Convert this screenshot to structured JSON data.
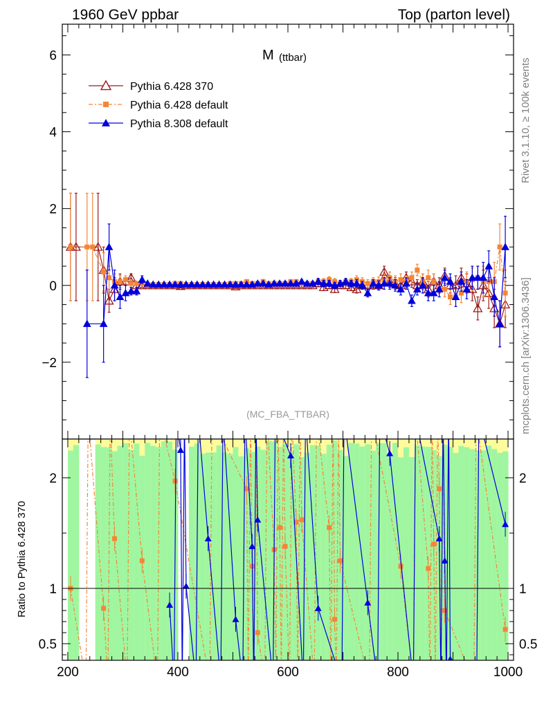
{
  "header": {
    "left": "1960 GeV ppbar",
    "right": "Top (parton level)"
  },
  "side_labels": {
    "rivet": "Rivet 3.1.10, ≥ 100k events",
    "mcplots": "mcplots.cern.ch [arXiv:1306.3436]"
  },
  "colors": {
    "p6_370": "#9b1b1b",
    "p6_default": "#f58536",
    "p8_default": "#0000dd",
    "band_green": "#a0f6a0",
    "band_yellow": "#fcfc9c"
  },
  "chart_data": [
    {
      "type": "line",
      "title": "M",
      "title_sub": "(ttbar)",
      "watermark": "(MC_FBA_TTBAR)",
      "ylim": [
        -4,
        6.8
      ],
      "xlim": [
        190,
        1010
      ],
      "yticks": [
        -2,
        0,
        2,
        4,
        6
      ],
      "ytick_labels": [
        "−2",
        "0",
        "2",
        "4",
        "6"
      ],
      "legend": [
        {
          "name": "Pythia 6.428 370",
          "marker": "open-triangle",
          "color": "#9b1b1b"
        },
        {
          "name": "Pythia 6.428 default",
          "marker": "square",
          "color": "#f58536"
        },
        {
          "name": "Pythia 8.308 default",
          "marker": "filled-triangle",
          "color": "#0000dd"
        }
      ],
      "legend_position": "top-left",
      "series": [
        {
          "name": "Pythia 6.428 370",
          "x": [
            205,
            215,
            255,
            265,
            275,
            285,
            295,
            305,
            315,
            325,
            335,
            345,
            355,
            365,
            375,
            385,
            395,
            405,
            415,
            425,
            435,
            445,
            455,
            465,
            475,
            485,
            495,
            505,
            515,
            525,
            535,
            545,
            555,
            565,
            575,
            585,
            595,
            605,
            615,
            625,
            635,
            645,
            655,
            665,
            675,
            685,
            695,
            705,
            715,
            725,
            735,
            745,
            755,
            765,
            775,
            785,
            795,
            805,
            815,
            825,
            835,
            845,
            855,
            865,
            875,
            885,
            895,
            905,
            915,
            925,
            935,
            945,
            955,
            965,
            975,
            985,
            995
          ],
          "y": [
            1.0,
            1.0,
            1.0,
            0.4,
            -0.4,
            -0.1,
            0.1,
            0.1,
            0.2,
            0.0,
            0.0,
            0.0,
            0.0,
            0.0,
            0.0,
            0.0,
            0.0,
            -0.02,
            0.0,
            0.0,
            0.0,
            0.0,
            0.0,
            0.0,
            0.0,
            0.0,
            0.0,
            -0.03,
            0.0,
            0.0,
            0.0,
            0.0,
            0.0,
            0.0,
            0.0,
            0.0,
            0.0,
            0.0,
            0.0,
            0.0,
            0.0,
            0.0,
            0.05,
            -0.05,
            0.0,
            -0.1,
            0.0,
            0.0,
            -0.05,
            -0.1,
            0.0,
            0.0,
            0.0,
            0.0,
            0.35,
            0.1,
            0.05,
            0.0,
            0.2,
            0.1,
            0.0,
            0.1,
            -0.1,
            0.1,
            0.0,
            0.25,
            0.0,
            0.0,
            0.2,
            0.05,
            -0.1,
            -0.6,
            0.0,
            -0.2,
            -0.6,
            -1.0,
            -0.5
          ],
          "err": [
            1.4,
            1.4,
            1.4,
            0.6,
            0.3,
            0.3,
            0.2,
            0.1,
            0.1,
            0.05,
            0.05,
            0.05,
            0.05,
            0.05,
            0.05,
            0.05,
            0.05,
            0.05,
            0.05,
            0.05,
            0.05,
            0.05,
            0.05,
            0.05,
            0.05,
            0.05,
            0.05,
            0.05,
            0.05,
            0.05,
            0.05,
            0.05,
            0.05,
            0.05,
            0.05,
            0.05,
            0.05,
            0.05,
            0.05,
            0.05,
            0.05,
            0.05,
            0.08,
            0.08,
            0.08,
            0.08,
            0.08,
            0.08,
            0.08,
            0.1,
            0.1,
            0.1,
            0.1,
            0.12,
            0.15,
            0.15,
            0.15,
            0.15,
            0.15,
            0.15,
            0.15,
            0.2,
            0.2,
            0.2,
            0.2,
            0.2,
            0.2,
            0.25,
            0.25,
            0.25,
            0.3,
            0.3,
            0.4,
            0.4,
            0.5,
            0.6,
            0.6
          ]
        },
        {
          "name": "Pythia 6.428 default",
          "x": [
            205,
            235,
            245,
            265,
            275,
            285,
            295,
            305,
            315,
            325,
            335,
            345,
            355,
            365,
            375,
            385,
            395,
            405,
            415,
            425,
            435,
            445,
            455,
            465,
            475,
            485,
            495,
            505,
            515,
            525,
            535,
            545,
            555,
            565,
            575,
            585,
            595,
            605,
            615,
            625,
            635,
            645,
            655,
            665,
            675,
            685,
            695,
            705,
            715,
            725,
            735,
            745,
            755,
            765,
            775,
            785,
            795,
            805,
            815,
            825,
            835,
            845,
            855,
            865,
            875,
            885,
            895,
            905,
            915,
            925,
            935,
            945,
            955,
            965,
            975,
            985,
            995
          ],
          "y": [
            1.0,
            1.0,
            1.0,
            0.35,
            0.2,
            0.1,
            0.1,
            0.15,
            0.05,
            0.05,
            0.05,
            0.02,
            0.02,
            0.02,
            0.02,
            0.02,
            0.05,
            0.05,
            0.02,
            0.02,
            0.02,
            0.02,
            0.02,
            0.02,
            0.02,
            0.02,
            0.05,
            0.05,
            0.05,
            0.1,
            0.05,
            0.05,
            0.1,
            0.05,
            0.05,
            0.05,
            0.05,
            0.1,
            0.1,
            0.05,
            0.05,
            0.05,
            0.1,
            0.1,
            0.15,
            0.1,
            0.05,
            0.1,
            0.1,
            0.15,
            0.1,
            0.05,
            0.1,
            0.1,
            0.15,
            0.2,
            0.1,
            0.15,
            0.1,
            0.2,
            0.4,
            0.1,
            0.2,
            0.1,
            -0.1,
            -0.1,
            -0.3,
            -0.3,
            -0.2,
            0.1,
            0.15,
            0.2,
            0.1,
            0.1,
            0.1,
            1.0,
            -0.2
          ],
          "err": [
            1.4,
            1.4,
            1.4,
            0.5,
            0.3,
            0.2,
            0.15,
            0.1,
            0.1,
            0.05,
            0.05,
            0.05,
            0.05,
            0.05,
            0.05,
            0.05,
            0.05,
            0.05,
            0.05,
            0.05,
            0.05,
            0.05,
            0.05,
            0.05,
            0.05,
            0.05,
            0.05,
            0.05,
            0.05,
            0.05,
            0.05,
            0.05,
            0.05,
            0.05,
            0.05,
            0.05,
            0.05,
            0.05,
            0.05,
            0.05,
            0.05,
            0.05,
            0.08,
            0.08,
            0.08,
            0.08,
            0.08,
            0.08,
            0.08,
            0.1,
            0.1,
            0.1,
            0.1,
            0.12,
            0.15,
            0.15,
            0.15,
            0.15,
            0.15,
            0.15,
            0.15,
            0.2,
            0.2,
            0.2,
            0.2,
            0.2,
            0.2,
            0.25,
            0.25,
            0.25,
            0.3,
            0.3,
            0.4,
            0.4,
            0.5,
            0.6,
            0.6
          ]
        },
        {
          "name": "Pythia 8.308 default",
          "x": [
            235,
            265,
            275,
            285,
            295,
            305,
            315,
            325,
            335,
            345,
            355,
            365,
            375,
            385,
            395,
            405,
            415,
            425,
            435,
            445,
            455,
            465,
            475,
            485,
            495,
            505,
            515,
            525,
            535,
            545,
            555,
            565,
            575,
            585,
            595,
            605,
            615,
            625,
            635,
            645,
            655,
            665,
            675,
            685,
            695,
            705,
            715,
            725,
            735,
            745,
            755,
            765,
            775,
            785,
            795,
            805,
            815,
            825,
            835,
            845,
            855,
            865,
            875,
            885,
            895,
            905,
            915,
            925,
            935,
            945,
            955,
            965,
            975,
            985,
            995
          ],
          "y": [
            -1.0,
            -1.0,
            1.0,
            0.0,
            -0.3,
            -0.2,
            -0.15,
            -0.15,
            0.15,
            0.05,
            0.02,
            0.02,
            0.02,
            0.02,
            0.02,
            0.02,
            0.02,
            0.02,
            0.02,
            0.02,
            0.02,
            0.02,
            0.02,
            0.02,
            0.02,
            0.02,
            0.02,
            0.02,
            0.02,
            0.05,
            0.05,
            0.02,
            0.05,
            0.05,
            0.05,
            0.05,
            0.05,
            0.1,
            0.05,
            0.05,
            0.1,
            0.05,
            0.05,
            0.0,
            0.05,
            0.1,
            0.05,
            0.05,
            0.0,
            -0.2,
            0.05,
            0.0,
            0.05,
            0.05,
            0.0,
            -0.1,
            0.05,
            -0.4,
            -0.1,
            0.0,
            -0.2,
            -0.2,
            -0.1,
            0.2,
            0.1,
            -0.3,
            0.1,
            -0.1,
            0.2,
            0.2,
            0.2,
            0.5,
            -0.3,
            -1.0,
            1.0
          ],
          "err": [
            1.4,
            1.0,
            0.6,
            0.4,
            0.3,
            0.2,
            0.1,
            0.1,
            0.1,
            0.05,
            0.05,
            0.05,
            0.05,
            0.05,
            0.05,
            0.05,
            0.05,
            0.05,
            0.05,
            0.05,
            0.05,
            0.05,
            0.05,
            0.05,
            0.05,
            0.05,
            0.05,
            0.05,
            0.05,
            0.05,
            0.05,
            0.05,
            0.05,
            0.05,
            0.05,
            0.05,
            0.05,
            0.05,
            0.05,
            0.05,
            0.08,
            0.08,
            0.08,
            0.08,
            0.08,
            0.08,
            0.08,
            0.1,
            0.1,
            0.1,
            0.1,
            0.12,
            0.15,
            0.15,
            0.15,
            0.15,
            0.15,
            0.15,
            0.15,
            0.2,
            0.2,
            0.2,
            0.2,
            0.2,
            0.2,
            0.25,
            0.25,
            0.25,
            0.3,
            0.3,
            0.4,
            0.4,
            0.5,
            0.6,
            0.8
          ]
        }
      ]
    },
    {
      "type": "line",
      "ylabel": "Ratio to Pythia 6.428 370",
      "xlim": [
        190,
        1010
      ],
      "ylim": [
        0.35,
        2.35
      ],
      "yticks": [
        0.5,
        1,
        2
      ],
      "ytick_labels": [
        "0.5",
        "1",
        "2"
      ],
      "xticks": [
        200,
        400,
        600,
        800,
        1000
      ],
      "xtick_labels": [
        "200",
        "400",
        "600",
        "800",
        "1000"
      ],
      "reference_line": 1,
      "series": [
        {
          "name": "Pythia 6.428 default",
          "x": [
            205,
            265,
            285,
            335,
            395,
            525,
            535,
            545,
            575,
            585,
            595,
            615,
            625,
            675,
            685,
            695,
            805,
            855,
            865,
            875,
            885,
            995
          ],
          "y": [
            1.0,
            0.82,
            1.45,
            1.25,
            1.97,
            1.9,
            1.2,
            0.6,
            1.35,
            1.55,
            1.38,
            1.6,
            1.62,
            1.55,
            0.72,
            1.25,
            1.2,
            1.18,
            1.4,
            1.9,
            0.8,
            0.63
          ]
        },
        {
          "name": "Pythia 8.308 default",
          "x": [
            385,
            405,
            415,
            455,
            505,
            535,
            545,
            605,
            655,
            745,
            785,
            875,
            885,
            895,
            995
          ],
          "y": [
            0.85,
            2.25,
            1.02,
            1.45,
            0.72,
            1.38,
            1.62,
            2.2,
            0.82,
            0.87,
            2.22,
            1.45,
            1.25,
            0.36,
            1.58
          ]
        }
      ]
    }
  ]
}
